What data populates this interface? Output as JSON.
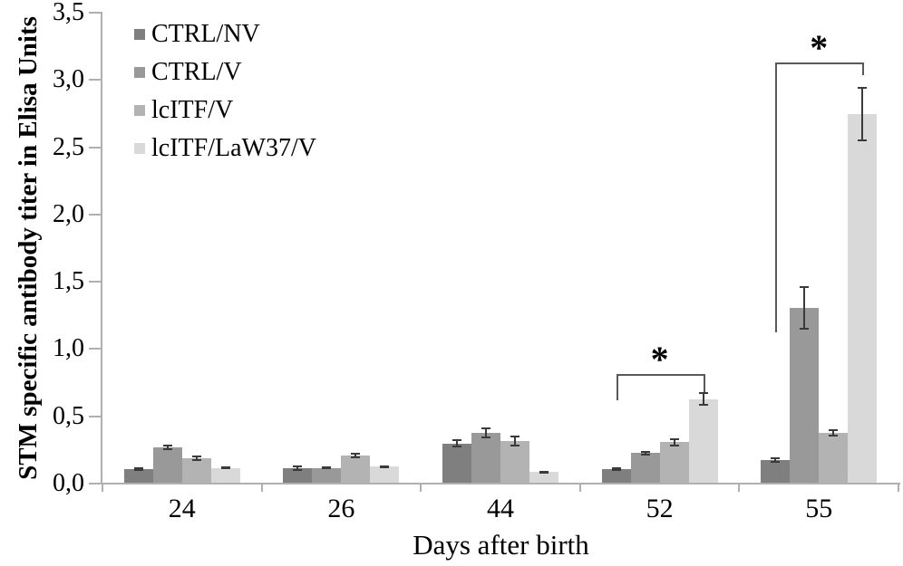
{
  "chart_data": {
    "type": "bar",
    "title": "",
    "xlabel": "Days after birth",
    "ylabel": "STM specific antibody titer in Elisa Units",
    "categories": [
      "24",
      "26",
      "44",
      "52",
      "55"
    ],
    "series": [
      {
        "name": "CTRL/NV",
        "color": "#7f7f7f",
        "values": [
          0.1,
          0.11,
          0.29,
          0.1,
          0.17
        ],
        "errors": [
          0.015,
          0.02,
          0.03,
          0.015,
          0.02
        ]
      },
      {
        "name": "CTRL/V",
        "color": "#999999",
        "values": [
          0.26,
          0.11,
          0.37,
          0.22,
          1.3
        ],
        "errors": [
          0.02,
          0.01,
          0.04,
          0.015,
          0.16
        ]
      },
      {
        "name": "lcITF/V",
        "color": "#b3b3b3",
        "values": [
          0.18,
          0.2,
          0.31,
          0.3,
          0.37
        ],
        "errors": [
          0.02,
          0.02,
          0.04,
          0.03,
          0.03
        ]
      },
      {
        "name": "lcITF/LaW37/V",
        "color": "#d9d9d9",
        "values": [
          0.11,
          0.12,
          0.08,
          0.62,
          2.74
        ],
        "errors": [
          0.01,
          0.01,
          0.01,
          0.05,
          0.2
        ]
      }
    ],
    "ylim": [
      0,
      3.5
    ],
    "ytick_step": 0.5,
    "ytick_labels": [
      "0,0",
      "0,5",
      "1,0",
      "1,5",
      "2,0",
      "2,5",
      "3,0",
      "3,5"
    ],
    "grid": false,
    "legend_position": "top-left-inside",
    "annotations": [
      {
        "label": "*",
        "category": "52",
        "from_series": "CTRL/NV",
        "to_series": "lcITF/LaW37/V",
        "bracket_y": 0.81,
        "left_drop_to": 0.61,
        "right_drop_to": 0.67
      },
      {
        "label": "*",
        "category": "55",
        "from_series": "CTRL/NV",
        "to_series": "lcITF/LaW37/V",
        "bracket_y": 3.12,
        "left_drop_to": 1.12,
        "right_drop_to": 3.03
      }
    ]
  },
  "colors": {
    "axis": "#b0b0b0",
    "error_bar": "#3a3a3a",
    "bracket": "#595959",
    "text": "#000000",
    "background": "#ffffff"
  }
}
